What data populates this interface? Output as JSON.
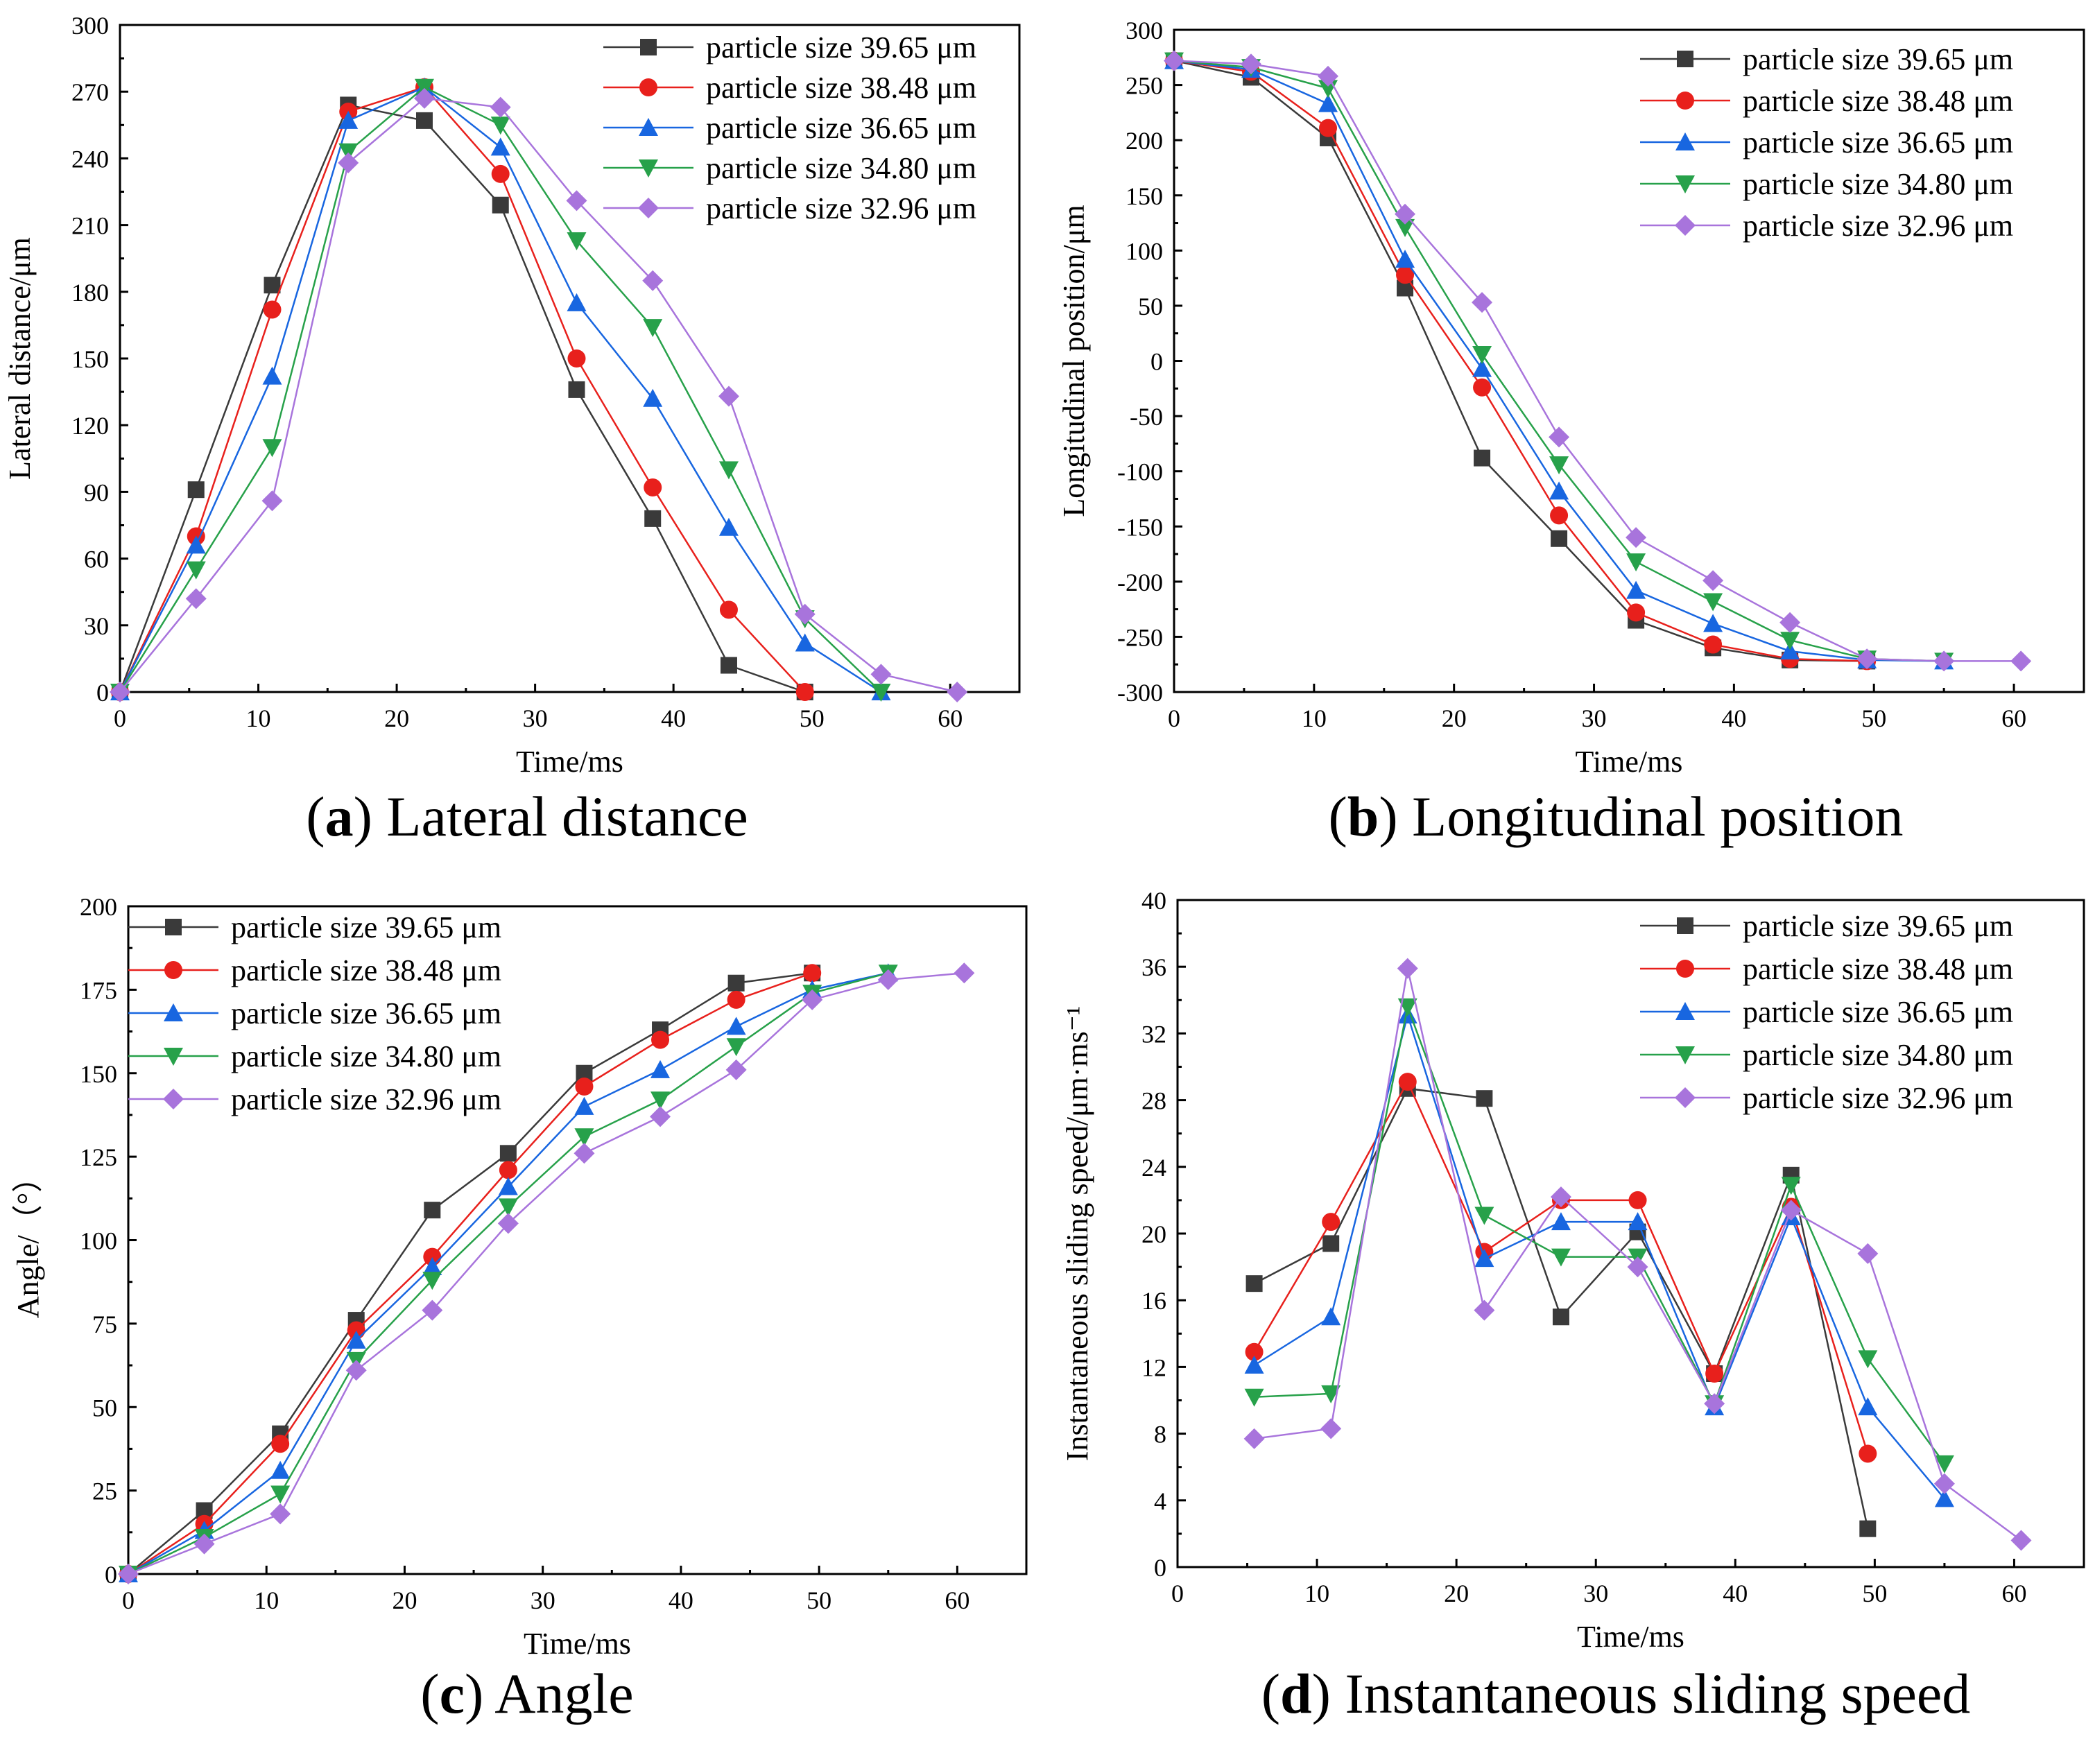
{
  "series_names": [
    "particle size 39.65 μm",
    "particle size 38.48 μm",
    "particle size 36.65 μm",
    "particle size 34.80 μm",
    "particle size 32.96 μm"
  ],
  "series_colors": [
    "#3a3a3a",
    "#e8201c",
    "#1866e0",
    "#27a14a",
    "#a874dc"
  ],
  "series_markers": [
    "square",
    "circle",
    "triangle-up",
    "triangle-down",
    "diamond"
  ],
  "chart_data": [
    {
      "id": "a",
      "type": "line",
      "caption_letter": "a",
      "caption_text": "Lateral distance",
      "xlabel": "Time/ms",
      "ylabel": "Lateral distance/μm",
      "xlim": [
        0,
        65
      ],
      "ylim": [
        0,
        300
      ],
      "xticks": [
        0,
        10,
        20,
        30,
        40,
        50,
        60
      ],
      "yticks": [
        0,
        30,
        60,
        90,
        120,
        150,
        180,
        210,
        240,
        270,
        300
      ],
      "legend_position": "top-right",
      "series": [
        {
          "name": "particle size 39.65 μm",
          "x": [
            0,
            5.5,
            11,
            16.5,
            22,
            27.5,
            33,
            38.5,
            44,
            49.5
          ],
          "values": [
            0,
            91,
            183,
            264,
            257,
            219,
            136,
            78,
            12,
            0
          ]
        },
        {
          "name": "particle size 38.48 μm",
          "x": [
            0,
            5.5,
            11,
            16.5,
            22,
            27.5,
            33,
            38.5,
            44,
            49.5
          ],
          "values": [
            0,
            70,
            172,
            261,
            272,
            233,
            150,
            92,
            37,
            0
          ]
        },
        {
          "name": "particle size 36.65 μm",
          "x": [
            0,
            5.5,
            11,
            16.5,
            22,
            27.5,
            33,
            38.5,
            44,
            49.5,
            55
          ],
          "values": [
            0,
            66,
            142,
            257,
            272,
            245,
            175,
            132,
            74,
            22,
            0
          ]
        },
        {
          "name": "particle size 34.80 μm",
          "x": [
            0,
            5.5,
            11,
            16.5,
            22,
            27.5,
            33,
            38.5,
            44,
            49.5,
            55
          ],
          "values": [
            0,
            55,
            110,
            243,
            272,
            255,
            203,
            164,
            100,
            33,
            0
          ]
        },
        {
          "name": "particle size 32.96 μm",
          "x": [
            0,
            5.5,
            11,
            16.5,
            22,
            27.5,
            33,
            38.5,
            44,
            49.5,
            55,
            60.5
          ],
          "values": [
            0,
            42,
            86,
            238,
            267,
            263,
            221,
            185,
            133,
            35,
            8,
            0
          ]
        }
      ]
    },
    {
      "id": "b",
      "type": "line",
      "caption_letter": "b",
      "caption_text": "Longitudinal position",
      "xlabel": "Time/ms",
      "ylabel": "Longitudinal position/μm",
      "xlim": [
        0,
        65
      ],
      "ylim": [
        -300,
        300
      ],
      "xticks": [
        0,
        10,
        20,
        30,
        40,
        50,
        60
      ],
      "yticks": [
        -300,
        -250,
        -200,
        -150,
        -100,
        -50,
        0,
        50,
        100,
        150,
        200,
        250,
        300
      ],
      "legend_position": "top-right",
      "series": [
        {
          "name": "particle size 39.65 μm",
          "x": [
            0,
            5.5,
            11,
            16.5,
            22,
            27.5,
            33,
            38.5,
            44,
            49.5
          ],
          "values": [
            272,
            257,
            202,
            66,
            -88,
            -161,
            -235,
            -260,
            -271,
            -272
          ]
        },
        {
          "name": "particle size 38.48 μm",
          "x": [
            0,
            5.5,
            11,
            16.5,
            22,
            27.5,
            33,
            38.5,
            44,
            49.5
          ],
          "values": [
            272,
            262,
            211,
            78,
            -24,
            -140,
            -228,
            -257,
            -270,
            -272
          ]
        },
        {
          "name": "particle size 36.65 μm",
          "x": [
            0,
            5.5,
            11,
            16.5,
            22,
            27.5,
            33,
            38.5,
            44,
            49.5,
            55
          ],
          "values": [
            272,
            264,
            233,
            92,
            -7,
            -118,
            -208,
            -238,
            -263,
            -271,
            -272
          ]
        },
        {
          "name": "particle size 34.80 μm",
          "x": [
            0,
            5.5,
            11,
            16.5,
            22,
            27.5,
            33,
            38.5,
            44,
            49.5,
            55
          ],
          "values": [
            272,
            266,
            247,
            121,
            6,
            -94,
            -182,
            -218,
            -253,
            -270,
            -272
          ]
        },
        {
          "name": "particle size 32.96 μm",
          "x": [
            0,
            5.5,
            11,
            16.5,
            22,
            27.5,
            33,
            38.5,
            44,
            49.5,
            55,
            60.5
          ],
          "values": [
            272,
            269,
            258,
            133,
            53,
            -69,
            -160,
            -199,
            -237,
            -270,
            -272,
            -272
          ]
        }
      ]
    },
    {
      "id": "c",
      "type": "line",
      "caption_letter": "c",
      "caption_text": "Angle",
      "xlabel": "Time/ms",
      "ylabel": "Angle/（°）",
      "xlim": [
        0,
        65
      ],
      "ylim": [
        0,
        200
      ],
      "xticks": [
        0,
        10,
        20,
        30,
        40,
        50,
        60
      ],
      "yticks": [
        0,
        25,
        50,
        75,
        100,
        125,
        150,
        175,
        200
      ],
      "legend_position": "top-left",
      "series": [
        {
          "name": "particle size 39.65 μm",
          "x": [
            0,
            5.5,
            11,
            16.5,
            22,
            27.5,
            33,
            38.5,
            44,
            49.5
          ],
          "values": [
            0,
            19,
            42,
            76,
            109,
            126,
            150,
            163,
            177,
            180
          ]
        },
        {
          "name": "particle size 38.48 μm",
          "x": [
            0,
            5.5,
            11,
            16.5,
            22,
            27.5,
            33,
            38.5,
            44,
            49.5
          ],
          "values": [
            0,
            15,
            39,
            73,
            95,
            121,
            146,
            160,
            172,
            180
          ]
        },
        {
          "name": "particle size 36.65 μm",
          "x": [
            0,
            5.5,
            11,
            16.5,
            22,
            27.5,
            33,
            38.5,
            44,
            49.5,
            55
          ],
          "values": [
            0,
            13,
            31,
            70,
            92,
            116,
            140,
            151,
            164,
            175,
            180
          ]
        },
        {
          "name": "particle size 34.80 μm",
          "x": [
            0,
            5.5,
            11,
            16.5,
            22,
            27.5,
            33,
            38.5,
            44,
            49.5,
            55
          ],
          "values": [
            0,
            11,
            24,
            64,
            88,
            110,
            131,
            142,
            158,
            174,
            180
          ]
        },
        {
          "name": "particle size 32.96 μm",
          "x": [
            0,
            5.5,
            11,
            16.5,
            22,
            27.5,
            33,
            38.5,
            44,
            49.5,
            55,
            60.5
          ],
          "values": [
            0,
            9,
            18,
            61,
            79,
            105,
            126,
            137,
            151,
            172,
            178,
            180
          ]
        }
      ]
    },
    {
      "id": "d",
      "type": "line",
      "caption_letter": "d",
      "caption_text": "Instantaneous sliding speed",
      "xlabel": "Time/ms",
      "ylabel": "Instantaneous sliding speed/μm·ms⁻¹",
      "xlim": [
        0,
        65
      ],
      "ylim": [
        0,
        40
      ],
      "xticks": [
        0,
        10,
        20,
        30,
        40,
        50,
        60
      ],
      "yticks": [
        0,
        4,
        8,
        12,
        16,
        20,
        24,
        28,
        32,
        36,
        40
      ],
      "legend_position": "top-right",
      "series": [
        {
          "name": "particle size 39.65 μm",
          "x": [
            5.5,
            11,
            16.5,
            22,
            27.5,
            33,
            38.5,
            44,
            49.5
          ],
          "values": [
            17,
            19.4,
            28.7,
            28.1,
            15,
            20.1,
            11.6,
            23.5,
            2.3
          ]
        },
        {
          "name": "particle size 38.48 μm",
          "x": [
            5.5,
            11,
            16.5,
            22,
            27.5,
            33,
            38.5,
            44,
            49.5
          ],
          "values": [
            12.9,
            20.7,
            29.1,
            18.9,
            22,
            22,
            11.6,
            21.6,
            6.8
          ]
        },
        {
          "name": "particle size 36.65 μm",
          "x": [
            5.5,
            11,
            16.5,
            22,
            27.5,
            33,
            38.5,
            44,
            49.5,
            55
          ],
          "values": [
            12.1,
            15,
            33.1,
            18.5,
            20.7,
            20.7,
            9.6,
            21,
            9.6,
            4.1
          ]
        },
        {
          "name": "particle size 34.80 μm",
          "x": [
            5.5,
            11,
            16.5,
            22,
            27.5,
            33,
            38.5,
            44,
            49.5,
            55
          ],
          "values": [
            10.2,
            10.4,
            33.6,
            21.1,
            18.6,
            18.6,
            9.8,
            22.9,
            12.5,
            6.2
          ]
        },
        {
          "name": "particle size 32.96 μm",
          "x": [
            5.5,
            11,
            16.5,
            22,
            27.5,
            33,
            38.5,
            44,
            49.5,
            55,
            60.5
          ],
          "values": [
            7.7,
            8.3,
            35.9,
            15.4,
            22.2,
            18,
            9.8,
            21.4,
            18.8,
            5,
            1.6
          ]
        }
      ]
    }
  ]
}
